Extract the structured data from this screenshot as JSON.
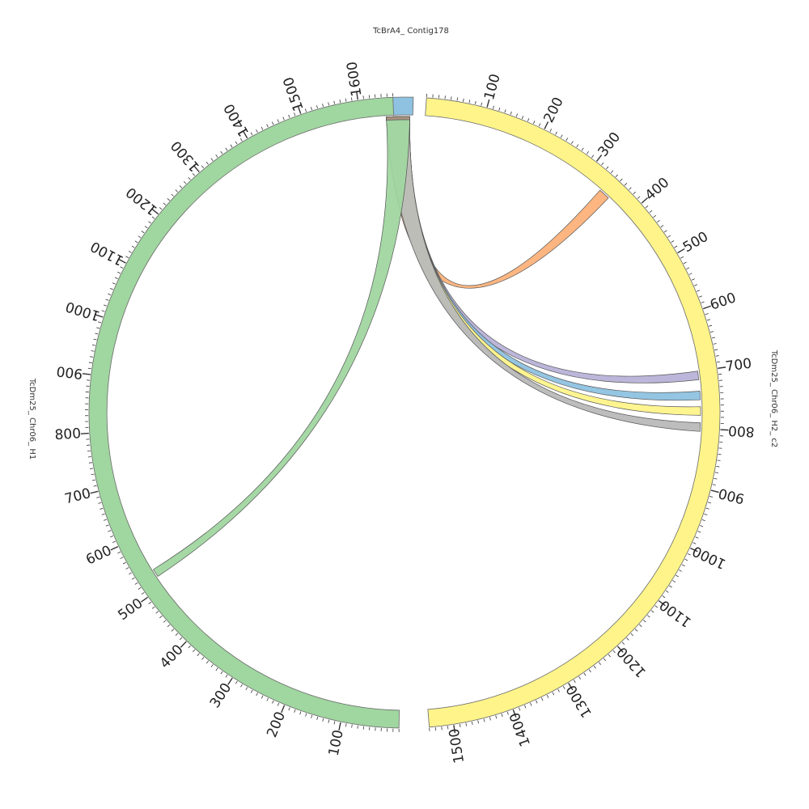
{
  "diagram": {
    "kind": "circos-synteny",
    "sequences": [
      {
        "id": "contig",
        "name": "TcBrA4_ Contig178",
        "length": 20,
        "start_angle": 355.9,
        "end_angle": 1.6,
        "color": "#8ec2e0",
        "tick_labels": []
      },
      {
        "id": "h2",
        "name": "TcDm25_ Chr06_ H2_ c2",
        "length": 1540,
        "start_angle": 4.0,
        "end_angle": 175.5,
        "color": "#fff48a",
        "tick_labels": [
          "100",
          "200",
          "300",
          "400",
          "500",
          "600",
          "700",
          "800",
          "900",
          "1000",
          "1100",
          "1200",
          "1300",
          "1400",
          "1500"
        ]
      },
      {
        "id": "h1",
        "name": "TcDm25_ Chr06_ H1",
        "length": 1660,
        "start_angle": 181.0,
        "end_angle": 357.9,
        "color": "#a0d6a0",
        "tick_labels": [
          "100",
          "200",
          "300",
          "400",
          "500",
          "600",
          "700",
          "800",
          "900",
          "1000",
          "1100",
          "1200",
          "1300",
          "1400",
          "1500",
          "1600"
        ]
      }
    ],
    "links": [
      {
        "color": "#fdb27a",
        "target": "h2",
        "from": 335,
        "to": 355
      },
      {
        "color": "#b8b2d8",
        "target": "h2",
        "from": 700,
        "to": 715
      },
      {
        "color": "#8ec2e0",
        "target": "h2",
        "from": 735,
        "to": 750
      },
      {
        "color": "#fff48a",
        "target": "h2",
        "from": 762,
        "to": 777
      },
      {
        "color": "#b9b9b9",
        "target": "h2",
        "from": 790,
        "to": 805
      },
      {
        "color": "#a0d6a0",
        "target": "h1",
        "from": 520,
        "to": 535
      }
    ],
    "link_source_color": "#a89380"
  }
}
